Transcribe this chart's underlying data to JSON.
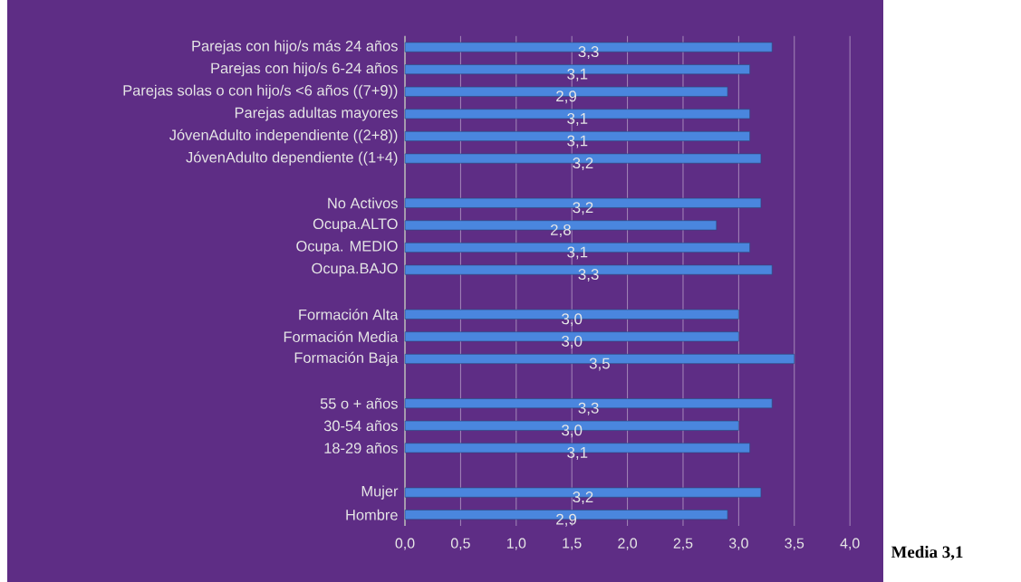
{
  "chart_data": {
    "type": "bar",
    "orientation": "horizontal",
    "categories": [
      "Parejas con hijo/s más 24 años",
      "Parejas con hijo/s 6-24 años",
      "Parejas solas o con hijo/s <6 años ((7+9))",
      "Parejas adultas mayores",
      "JóvenAdulto independiente ((2+8))",
      "JóvenAdulto dependiente ((1+4)",
      null,
      "No Activos",
      "Ocupa.ALTO",
      "Ocupa. MEDIO",
      "Ocupa.BAJO",
      null,
      "Formación Alta",
      "Formación Media",
      "Formación Baja",
      null,
      "55 o + años",
      "30-54 años",
      "18-29 años",
      null,
      "Mujer",
      "Hombre"
    ],
    "values": [
      3.3,
      3.1,
      2.9,
      3.1,
      3.1,
      3.2,
      null,
      3.2,
      2.8,
      3.1,
      3.3,
      null,
      3.0,
      3.0,
      3.5,
      null,
      3.3,
      3.0,
      3.1,
      null,
      3.2,
      2.9
    ],
    "value_labels": [
      "3,3",
      "3,1",
      "2,9",
      "3,1",
      "3,1",
      "3,2",
      null,
      "3,2",
      "2,8",
      "3,1",
      "3,3",
      null,
      "3,0",
      "3,0",
      "3,5",
      null,
      "3,3",
      "3,0",
      "3,1",
      null,
      "3,2",
      "2,9"
    ],
    "color": "#4a86de",
    "xlim": [
      0,
      4.3
    ],
    "xticks": [
      {
        "value": 0,
        "label": "0,0"
      },
      {
        "value": 0.5,
        "label": "0,5"
      },
      {
        "value": 1,
        "label": "1,0"
      },
      {
        "value": 1.5,
        "label": "1,5"
      },
      {
        "value": 2,
        "label": "2,0"
      },
      {
        "value": 2.5,
        "label": "2,5"
      },
      {
        "value": 3,
        "label": "3,0"
      },
      {
        "value": 3.5,
        "label": "3,5"
      },
      {
        "value": 4,
        "label": "4,0"
      }
    ],
    "grid": "x",
    "annotations": [
      "Media 3,1"
    ]
  }
}
